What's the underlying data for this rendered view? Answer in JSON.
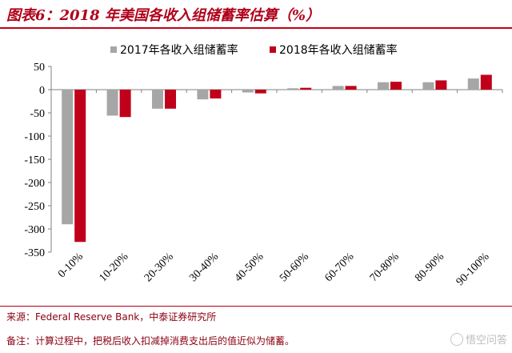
{
  "title": "图表6：2018 年美国各收入组储蓄率估算（%）",
  "source": "来源：Federal Reserve Bank，中泰证券研究所",
  "remark": "备注：计算过程中，把税后收入扣减掉消费支出后的值近似为储蓄。",
  "watermark": "悟空问答",
  "colors": {
    "accent": "#b0001a",
    "series_2017": "#a6a6a6",
    "series_2018": "#c0001a"
  },
  "chart_data": {
    "type": "bar",
    "title": "",
    "xlabel": "",
    "ylabel": "",
    "categories": [
      "0-10%",
      "10-20%",
      "20-30%",
      "30-40%",
      "40-50%",
      "50-60%",
      "60-70%",
      "70-80%",
      "80-90%",
      "90-100%"
    ],
    "series": [
      {
        "name": "2017年各收入组储蓄率",
        "color": "#a6a6a6",
        "values": [
          -290,
          -56,
          -41,
          -21,
          -6,
          3,
          8,
          16,
          16,
          24
        ]
      },
      {
        "name": "2018年各收入组储蓄率",
        "color": "#c0001a",
        "values": [
          -328,
          -59,
          -41,
          -19,
          -8,
          4,
          8,
          17,
          20,
          32
        ]
      }
    ],
    "ylim": [
      -350,
      50
    ],
    "yticks": [
      50,
      0,
      -50,
      -100,
      -150,
      -200,
      -250,
      -300,
      -350
    ],
    "grid": false,
    "legend_position": "top"
  }
}
